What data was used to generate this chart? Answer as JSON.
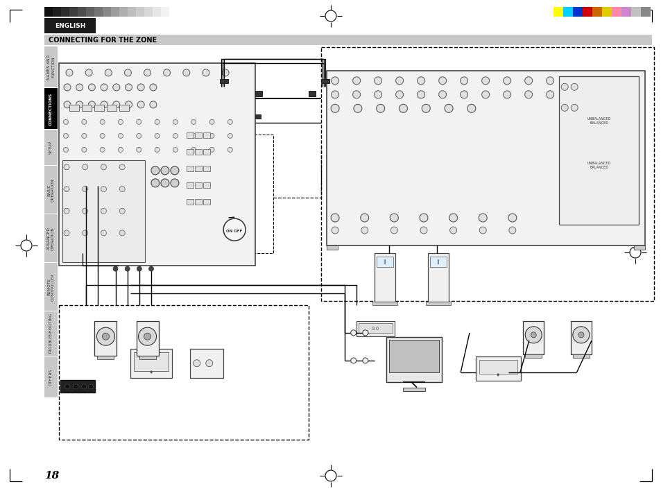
{
  "title": "CONNECTING FOR THE ZONE",
  "page_number": "18",
  "bg": "#ffffff",
  "gray_bar_colors": [
    "#111111",
    "#1e1e1e",
    "#2d2d2d",
    "#3d3d3d",
    "#4e4e4e",
    "#606060",
    "#737373",
    "#888888",
    "#9c9c9c",
    "#afafaf",
    "#bebebe",
    "#cccccc",
    "#d8d8d8",
    "#e6e6e6",
    "#f2f2f2"
  ],
  "color_bar_colors": [
    "#ffff00",
    "#00d0ff",
    "#0033cc",
    "#cc0000",
    "#cc6600",
    "#ddcc00",
    "#ff88aa",
    "#cc88cc",
    "#c0c0c0",
    "#888888"
  ],
  "english_bg": "#1a1a1a",
  "english_text": "ENGLISH",
  "title_bar_bg": "#c8c8c8",
  "title_text": "CONNECTING FOR THE ZONE",
  "sidebar_labels": [
    "NAMES AND\nFUNCTION",
    "CONNECTIONS",
    "SETUP",
    "BASIC\nOPERATION",
    "ADVANCED\nOPERATION",
    "REMOTE\nCONTROLLER",
    "TROUBLESHOOTING",
    "OTHERS"
  ],
  "sidebar_active_idx": 1,
  "page_num": "18"
}
